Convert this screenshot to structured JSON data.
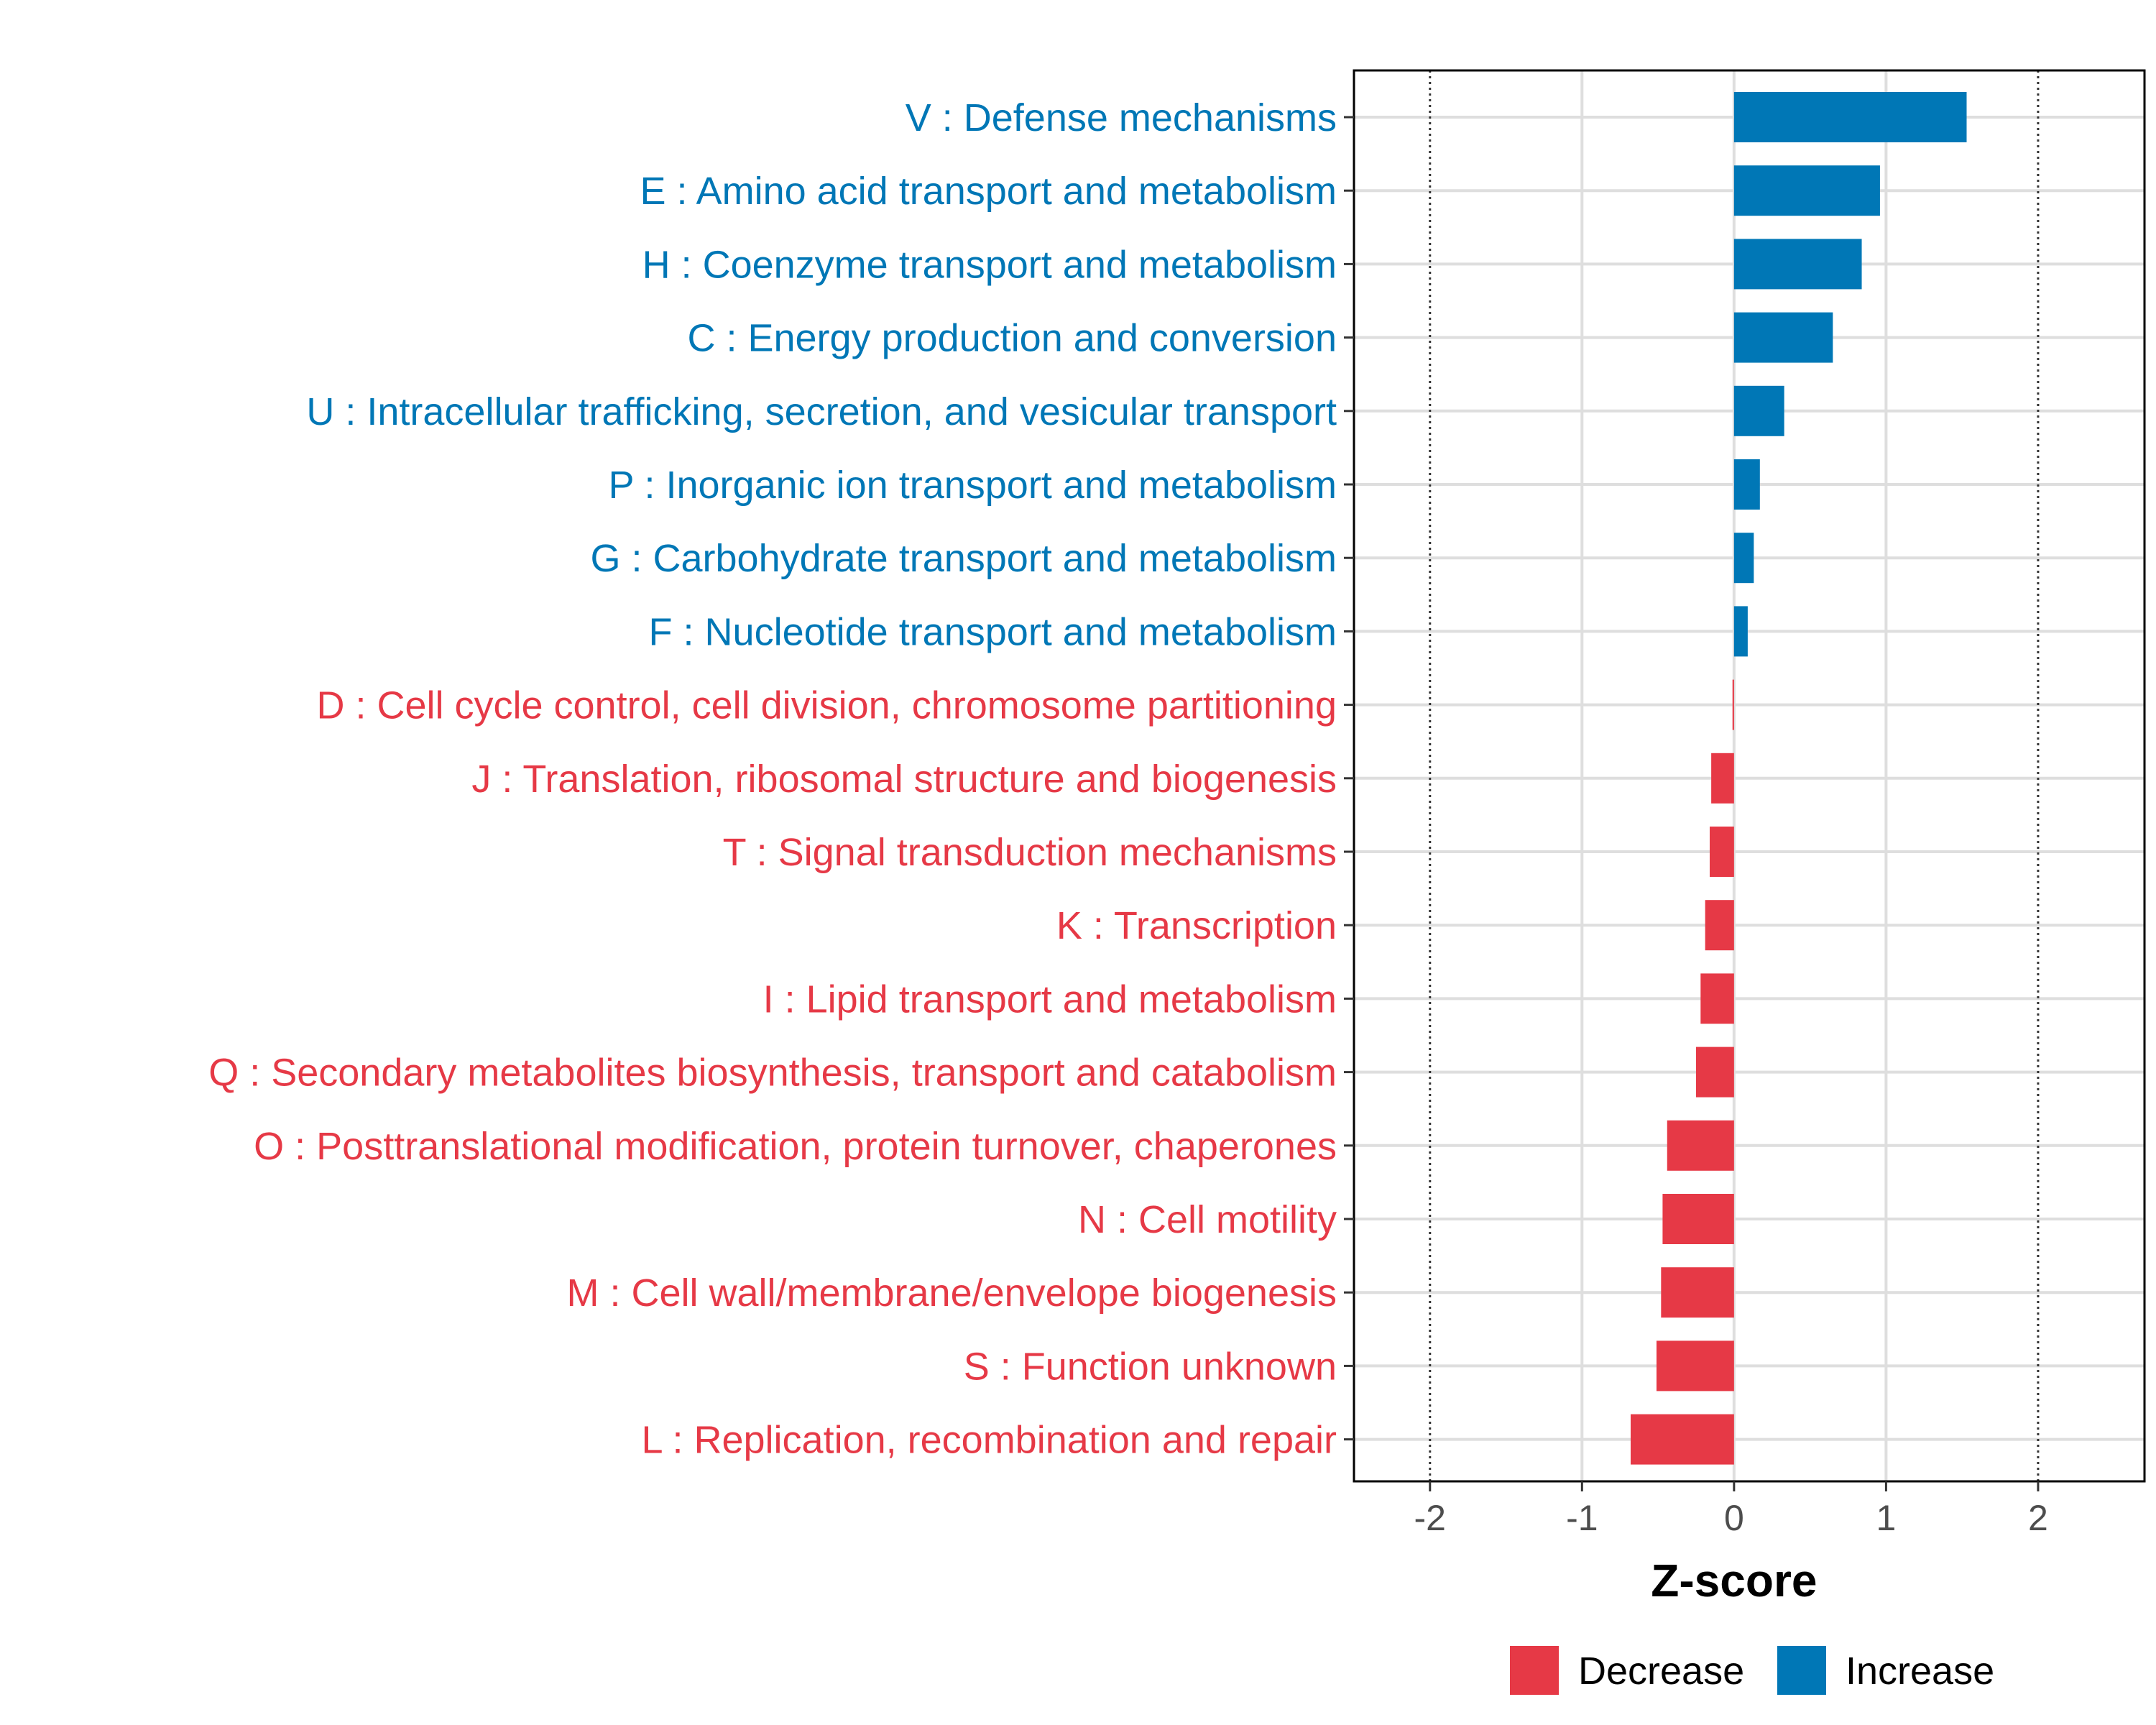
{
  "chart_data": {
    "type": "bar",
    "orientation": "horizontal",
    "xlabel": "Z-score",
    "xlim": [
      -2.5,
      2.7
    ],
    "xticks": [
      -2,
      -1,
      0,
      1,
      2
    ],
    "xtick_labels": [
      "-2",
      "-1",
      "0",
      "1",
      "2"
    ],
    "reference_lines": [
      -2,
      2
    ],
    "grid": true,
    "legend_position": "bottom",
    "colors": {
      "Decrease": "#e63946",
      "Increase": "#0077b6"
    },
    "legend": [
      {
        "label": "Decrease",
        "color": "#e63946"
      },
      {
        "label": "Increase",
        "color": "#0077b6"
      }
    ],
    "categories": [
      "V : Defense mechanisms",
      "E : Amino acid transport and metabolism",
      "H : Coenzyme transport and metabolism",
      "C : Energy production and conversion",
      "U : Intracellular trafficking, secretion, and vesicular transport",
      "P : Inorganic ion transport and metabolism",
      "G : Carbohydrate transport and metabolism",
      "F : Nucleotide transport and metabolism",
      "D : Cell cycle control, cell division, chromosome partitioning",
      "J : Translation, ribosomal structure and biogenesis",
      "T : Signal transduction mechanisms",
      "K : Transcription",
      "I : Lipid transport and metabolism",
      "Q : Secondary metabolites biosynthesis, transport and catabolism",
      "O : Posttranslational modification, protein turnover, chaperones",
      "N : Cell motility",
      "M : Cell wall/membrane/envelope biogenesis",
      "S : Function unknown",
      "L : Replication, recombination and repair"
    ],
    "values": [
      1.53,
      0.96,
      0.84,
      0.65,
      0.33,
      0.17,
      0.13,
      0.09,
      -0.01,
      -0.15,
      -0.16,
      -0.19,
      -0.22,
      -0.25,
      -0.44,
      -0.47,
      -0.48,
      -0.51,
      -0.68
    ],
    "groups": [
      "Increase",
      "Increase",
      "Increase",
      "Increase",
      "Increase",
      "Increase",
      "Increase",
      "Increase",
      "Decrease",
      "Decrease",
      "Decrease",
      "Decrease",
      "Decrease",
      "Decrease",
      "Decrease",
      "Decrease",
      "Decrease",
      "Decrease",
      "Decrease"
    ]
  }
}
